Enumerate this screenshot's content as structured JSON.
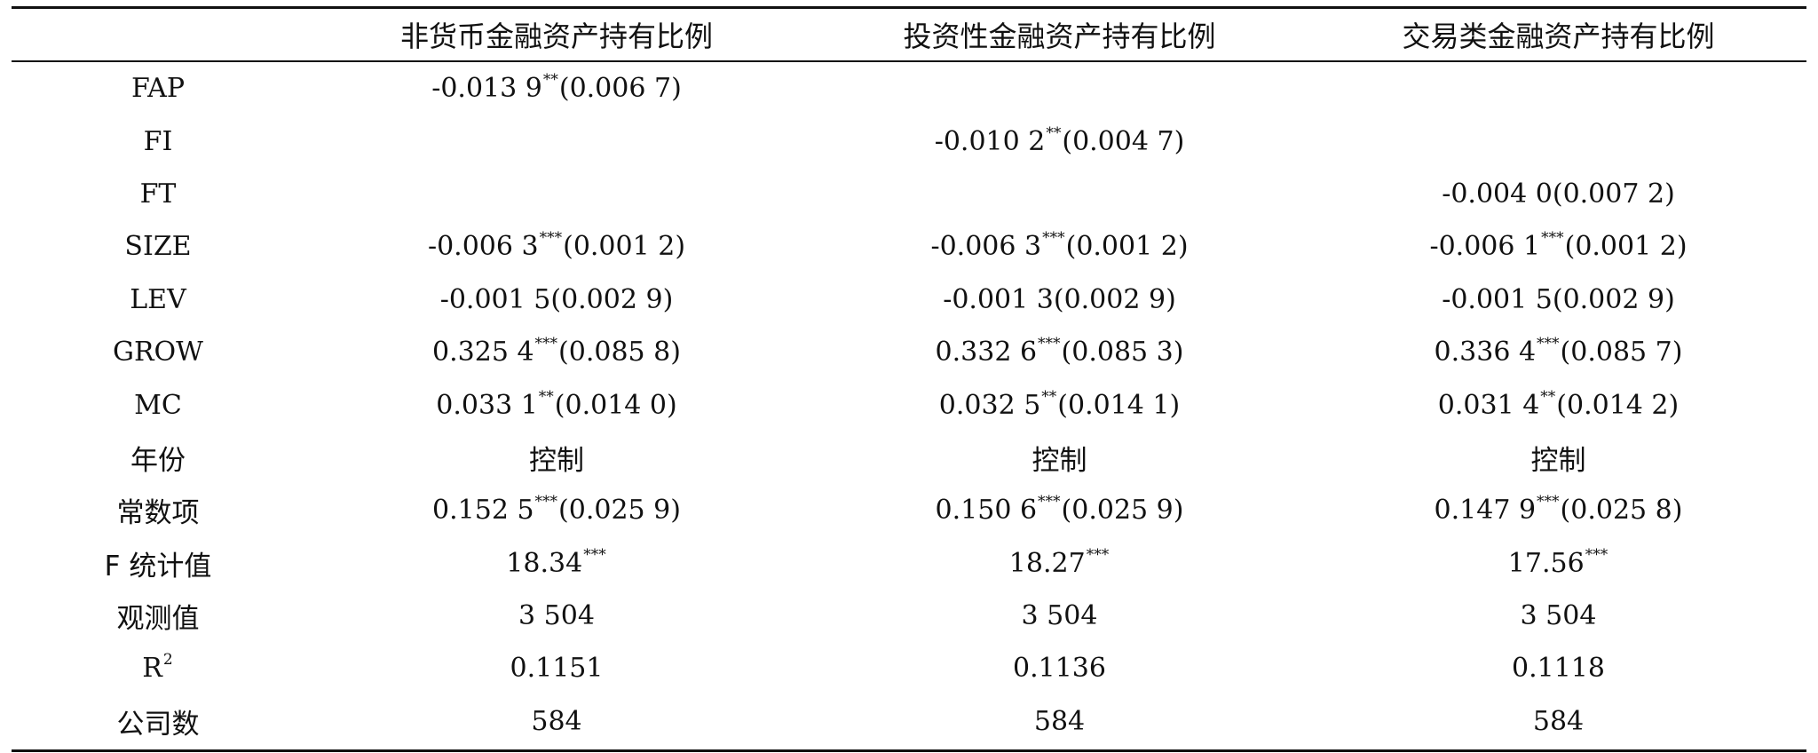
{
  "table": {
    "headers": [
      "",
      "非货币金融资产持有比例",
      "投资性金融资产持有比例",
      "交易类金融资产持有比例"
    ],
    "rows": [
      {
        "label": "FAP",
        "cells": [
          {
            "coef": "-0.013 9",
            "stars": "**",
            "se": "(0.006 7)"
          },
          {
            "coef": "",
            "stars": "",
            "se": ""
          },
          {
            "coef": "",
            "stars": "",
            "se": ""
          }
        ]
      },
      {
        "label": "FI",
        "cells": [
          {
            "coef": "",
            "stars": "",
            "se": ""
          },
          {
            "coef": "-0.010 2",
            "stars": "**",
            "se": "(0.004 7)"
          },
          {
            "coef": "",
            "stars": "",
            "se": ""
          }
        ]
      },
      {
        "label": "FT",
        "cells": [
          {
            "coef": "",
            "stars": "",
            "se": ""
          },
          {
            "coef": "",
            "stars": "",
            "se": ""
          },
          {
            "coef": "-0.004 0",
            "stars": "",
            "se": "(0.007 2)"
          }
        ]
      },
      {
        "label": "SIZE",
        "cells": [
          {
            "coef": "-0.006 3",
            "stars": "***",
            "se": "(0.001 2)"
          },
          {
            "coef": "-0.006 3",
            "stars": "***",
            "se": "(0.001 2)"
          },
          {
            "coef": "-0.006 1",
            "stars": "***",
            "se": "(0.001 2)"
          }
        ]
      },
      {
        "label": "LEV",
        "cells": [
          {
            "coef": "-0.001 5",
            "stars": "",
            "se": "(0.002 9)"
          },
          {
            "coef": "-0.001 3",
            "stars": "",
            "se": "(0.002 9)"
          },
          {
            "coef": "-0.001 5",
            "stars": "",
            "se": "(0.002 9)"
          }
        ]
      },
      {
        "label": "GROW",
        "cells": [
          {
            "coef": "0.325 4",
            "stars": "***",
            "se": "(0.085 8)"
          },
          {
            "coef": "0.332 6",
            "stars": "***",
            "se": "(0.085 3)"
          },
          {
            "coef": "0.336 4",
            "stars": "***",
            "se": "(0.085 7)"
          }
        ]
      },
      {
        "label": "MC",
        "cells": [
          {
            "coef": "0.033 1",
            "stars": "**",
            "se": "(0.014 0)"
          },
          {
            "coef": "0.032 5",
            "stars": "**",
            "se": "(0.014 1)"
          },
          {
            "coef": "0.031 4",
            "stars": "**",
            "se": "(0.014 2)"
          }
        ]
      },
      {
        "label": "年份",
        "cells": [
          {
            "coef": "控制",
            "stars": "",
            "se": ""
          },
          {
            "coef": "控制",
            "stars": "",
            "se": ""
          },
          {
            "coef": "控制",
            "stars": "",
            "se": ""
          }
        ]
      },
      {
        "label": "常数项",
        "cells": [
          {
            "coef": "0.152 5",
            "stars": "***",
            "se": "(0.025 9)"
          },
          {
            "coef": "0.150 6",
            "stars": "***",
            "se": "(0.025 9)"
          },
          {
            "coef": "0.147 9",
            "stars": "***",
            "se": "(0.025 8)"
          }
        ]
      },
      {
        "label": "F 统计值",
        "cells": [
          {
            "coef": "18.34",
            "stars": "***",
            "se": ""
          },
          {
            "coef": "18.27",
            "stars": "***",
            "se": ""
          },
          {
            "coef": "17.56",
            "stars": "***",
            "se": ""
          }
        ]
      },
      {
        "label": "观测值",
        "cells": [
          {
            "coef": "3 504",
            "stars": "",
            "se": ""
          },
          {
            "coef": "3 504",
            "stars": "",
            "se": ""
          },
          {
            "coef": "3 504",
            "stars": "",
            "se": ""
          }
        ]
      },
      {
        "label": "R",
        "label_sup": "2",
        "cells": [
          {
            "coef": "0.1151",
            "stars": "",
            "se": ""
          },
          {
            "coef": "0.1136",
            "stars": "",
            "se": ""
          },
          {
            "coef": "0.1118",
            "stars": "",
            "se": ""
          }
        ]
      },
      {
        "label": "公司数",
        "cells": [
          {
            "coef": "584",
            "stars": "",
            "se": ""
          },
          {
            "coef": "584",
            "stars": "",
            "se": ""
          },
          {
            "coef": "584",
            "stars": "",
            "se": ""
          }
        ]
      }
    ]
  }
}
